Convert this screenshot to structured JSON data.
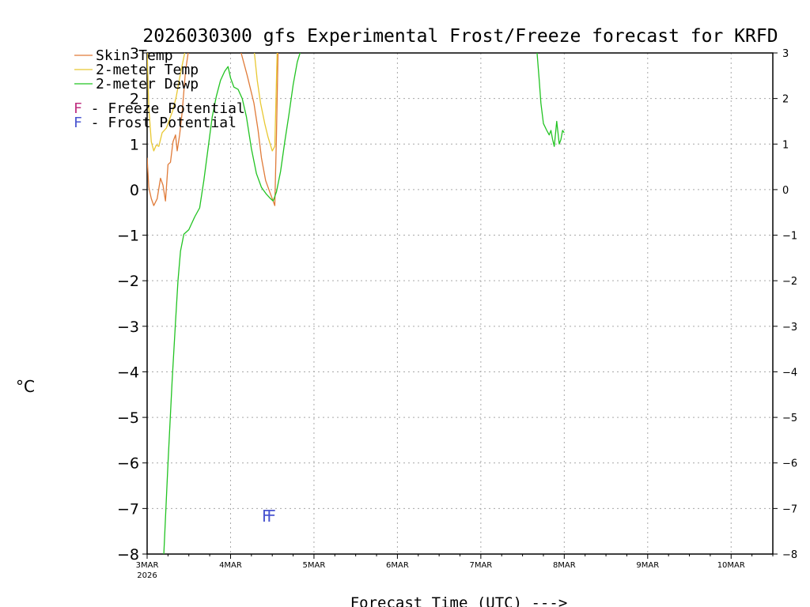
{
  "chart_data": {
    "type": "line",
    "title": "2026030300 gfs Experimental Frost/Freeze forecast for KRFD",
    "ylabel": "°C",
    "xlabel": "Forecast Time (UTC) --->",
    "ylim": [
      -8,
      3
    ],
    "xlim": [
      0,
      7.5
    ],
    "yticks": [
      -8,
      -7,
      -6,
      -5,
      -4,
      -3,
      -2,
      -1,
      0,
      1,
      2,
      3
    ],
    "ytick_labels": [
      "−8",
      "−7",
      "−6",
      "−5",
      "−4",
      "−3",
      "−2",
      "−1",
      "0",
      "1",
      "2",
      "3"
    ],
    "x_ticks": [
      {
        "x": 0,
        "label": "3MAR",
        "sublabel": "2026"
      },
      {
        "x": 1,
        "label": "4MAR"
      },
      {
        "x": 2,
        "label": "5MAR"
      },
      {
        "x": 3,
        "label": "6MAR"
      },
      {
        "x": 4,
        "label": "7MAR"
      },
      {
        "x": 5,
        "label": "8MAR"
      },
      {
        "x": 6,
        "label": "9MAR"
      },
      {
        "x": 7,
        "label": "10MAR"
      }
    ],
    "grid": true,
    "colors": {
      "skin": "#e07b39",
      "t2m": "#e8c832",
      "dewp": "#22c322",
      "freeze": "#c03080",
      "frost": "#4a55d0"
    },
    "series": [
      {
        "name": "Skin Temp",
        "key": "skin",
        "segments": [
          [
            [
              0,
              0.7
            ],
            [
              0.02,
              0.05
            ],
            [
              0.05,
              -0.2
            ],
            [
              0.08,
              -0.35
            ],
            [
              0.12,
              -0.2
            ],
            [
              0.16,
              0.25
            ],
            [
              0.19,
              0.1
            ],
            [
              0.22,
              -0.25
            ],
            [
              0.25,
              0.55
            ],
            [
              0.28,
              0.6
            ],
            [
              0.31,
              1.05
            ],
            [
              0.34,
              1.2
            ],
            [
              0.36,
              0.85
            ],
            [
              0.39,
              1.2
            ],
            [
              0.42,
              1.7
            ],
            [
              0.46,
              2.6
            ],
            [
              0.5,
              3.1
            ]
          ],
          [
            [
              1.12,
              3.05
            ],
            [
              1.2,
              2.5
            ],
            [
              1.28,
              1.9
            ],
            [
              1.33,
              1.3
            ],
            [
              1.37,
              0.7
            ],
            [
              1.42,
              0.2
            ],
            [
              1.47,
              -0.05
            ],
            [
              1.51,
              -0.25
            ],
            [
              1.53,
              -0.35
            ],
            [
              1.55,
              1.2
            ],
            [
              1.57,
              3.1
            ]
          ]
        ]
      },
      {
        "name": "2-meter Temp",
        "key": "t2m",
        "segments": [
          [
            [
              0,
              3.1
            ],
            [
              0.02,
              1.8
            ],
            [
              0.05,
              1.05
            ],
            [
              0.08,
              0.85
            ],
            [
              0.11,
              0.98
            ],
            [
              0.14,
              0.95
            ],
            [
              0.18,
              1.25
            ],
            [
              0.23,
              1.35
            ],
            [
              0.27,
              1.55
            ],
            [
              0.31,
              1.75
            ],
            [
              0.35,
              2.05
            ],
            [
              0.4,
              2.55
            ],
            [
              0.45,
              3.0
            ],
            [
              0.5,
              3.1
            ]
          ],
          [
            [
              1.28,
              3.1
            ],
            [
              1.32,
              2.4
            ],
            [
              1.36,
              1.9
            ],
            [
              1.41,
              1.45
            ],
            [
              1.45,
              1.15
            ],
            [
              1.5,
              0.85
            ],
            [
              1.53,
              0.95
            ],
            [
              1.56,
              3.1
            ]
          ]
        ]
      },
      {
        "name": "2-meter Dewp",
        "key": "dewp",
        "segments": [
          [
            [
              0.2,
              -8.0
            ],
            [
              0.25,
              -6.0
            ],
            [
              0.3,
              -4.2
            ],
            [
              0.34,
              -2.9
            ],
            [
              0.37,
              -2.0
            ],
            [
              0.4,
              -1.35
            ],
            [
              0.44,
              -0.98
            ],
            [
              0.5,
              -0.88
            ],
            [
              0.57,
              -0.6
            ],
            [
              0.63,
              -0.4
            ],
            [
              0.68,
              0.2
            ],
            [
              0.73,
              0.9
            ],
            [
              0.78,
              1.6
            ],
            [
              0.83,
              2.05
            ],
            [
              0.88,
              2.4
            ],
            [
              0.93,
              2.6
            ],
            [
              0.97,
              2.7
            ],
            [
              1.0,
              2.45
            ],
            [
              1.04,
              2.25
            ],
            [
              1.09,
              2.2
            ],
            [
              1.14,
              2.0
            ],
            [
              1.19,
              1.6
            ],
            [
              1.25,
              0.9
            ],
            [
              1.31,
              0.35
            ],
            [
              1.37,
              0.05
            ],
            [
              1.43,
              -0.1
            ],
            [
              1.48,
              -0.2
            ],
            [
              1.51,
              -0.25
            ],
            [
              1.55,
              -0.05
            ],
            [
              1.6,
              0.4
            ],
            [
              1.65,
              1.05
            ],
            [
              1.7,
              1.65
            ],
            [
              1.75,
              2.3
            ],
            [
              1.8,
              2.8
            ],
            [
              1.85,
              3.1
            ]
          ],
          [
            [
              4.67,
              3.1
            ],
            [
              4.7,
              2.4
            ],
            [
              4.72,
              1.9
            ],
            [
              4.75,
              1.45
            ],
            [
              4.79,
              1.3
            ],
            [
              4.82,
              1.2
            ],
            [
              4.84,
              1.3
            ],
            [
              4.86,
              1.1
            ],
            [
              4.88,
              0.95
            ],
            [
              4.91,
              1.5
            ],
            [
              4.94,
              1.0
            ],
            [
              4.96,
              1.1
            ],
            [
              4.98,
              1.3
            ],
            [
              5.0,
              1.25
            ]
          ]
        ]
      }
    ],
    "legend": [
      {
        "key": "skin",
        "label": "Skin Temp"
      },
      {
        "key": "t2m",
        "label": "2-meter Temp"
      },
      {
        "key": "dewp",
        "label": "2-meter Dewp"
      }
    ],
    "potential_legend": [
      {
        "key": "freeze",
        "letter": "F",
        "label": " - Freeze Potential"
      },
      {
        "key": "frost",
        "letter": "F",
        "label": " - Frost Potential"
      }
    ],
    "markers": [
      {
        "key": "frost",
        "letter": "F",
        "x": 1.43,
        "y": -7.15
      },
      {
        "key": "frost",
        "letter": "F",
        "x": 1.49,
        "y": -7.15
      }
    ]
  }
}
